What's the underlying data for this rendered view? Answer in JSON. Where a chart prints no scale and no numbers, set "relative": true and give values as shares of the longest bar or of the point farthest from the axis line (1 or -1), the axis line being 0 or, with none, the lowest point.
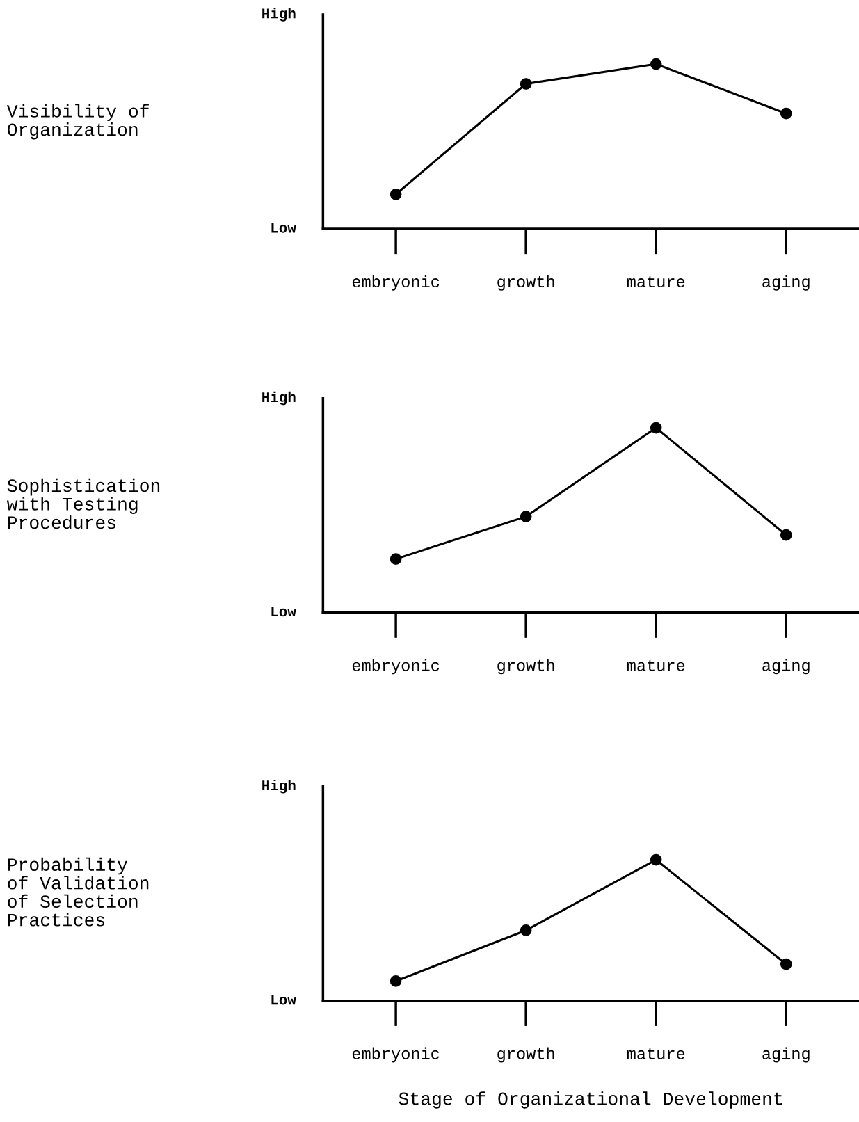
{
  "chart_data": [
    {
      "type": "line",
      "relative": true,
      "ylabel": "Visibility of\nOrganization",
      "annotations": [
        "High",
        "Low"
      ],
      "categories": [
        "embryonic",
        "growth",
        "mature",
        "aging"
      ],
      "series": [
        {
          "color": "#000000",
          "values": [
            0.21,
            0.88,
            1,
            0.7
          ]
        }
      ],
      "marker": "circle",
      "line_style": "solid"
    },
    {
      "type": "line",
      "relative": true,
      "ylabel": "Sophistication\nwith Testing\nProcedures",
      "annotations": [
        "High",
        "Low"
      ],
      "categories": [
        "embryonic",
        "growth",
        "mature",
        "aging"
      ],
      "series": [
        {
          "color": "#000000",
          "values": [
            0.29,
            0.52,
            1,
            0.42
          ]
        }
      ],
      "marker": "circle",
      "line_style": "solid"
    },
    {
      "type": "line",
      "relative": true,
      "ylabel": "Probability\nof Validation\nof Selection\nPractices",
      "xlabel": "Stage of Organizational Development",
      "annotations": [
        "High",
        "Low"
      ],
      "categories": [
        "embryonic",
        "growth",
        "mature",
        "aging"
      ],
      "series": [
        {
          "color": "#000000",
          "values": [
            0.14,
            0.5,
            1,
            0.26
          ]
        }
      ],
      "marker": "circle",
      "line_style": "solid"
    }
  ]
}
